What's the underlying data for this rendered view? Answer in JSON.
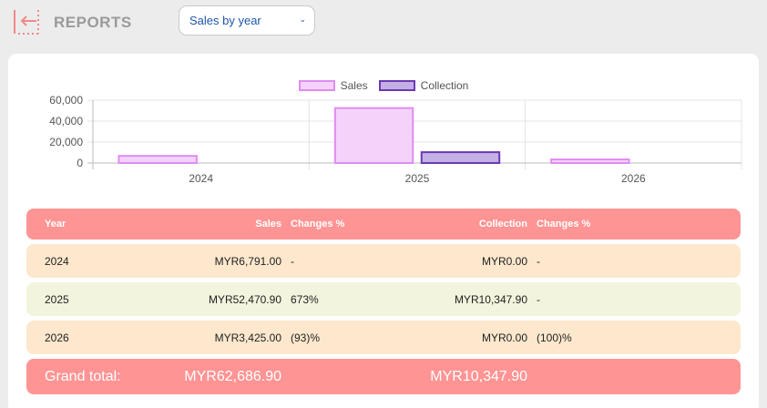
{
  "header": {
    "title": "REPORTS",
    "report_select": {
      "value": "Sales by year"
    }
  },
  "chart_data": {
    "type": "bar",
    "categories": [
      "2024",
      "2025",
      "2026"
    ],
    "series": [
      {
        "name": "Sales",
        "values": [
          6791.0,
          52470.9,
          3425.0
        ]
      },
      {
        "name": "Collection",
        "values": [
          0.0,
          10347.9,
          0.0
        ]
      }
    ],
    "ylim": [
      0,
      60000
    ],
    "yticks": [
      "60,000",
      "40,000",
      "20,000",
      "0"
    ],
    "legend": "top-center",
    "colors": {
      "sales_fill": "#f3d3fa",
      "sales_border": "#e08cf2",
      "collection_fill": "#c3b0e4",
      "collection_border": "#6c3ab5"
    }
  },
  "table": {
    "columns": {
      "year": "Year",
      "sales": "Sales",
      "sales_change": "Changes %",
      "collection": "Collection",
      "collection_change": "Changes %"
    },
    "rows": [
      {
        "year": "2024",
        "sales": "MYR6,791.00",
        "sales_change": "-",
        "collection": "MYR0.00",
        "collection_change": "-"
      },
      {
        "year": "2025",
        "sales": "MYR52,470.90",
        "sales_change": "673%",
        "collection": "MYR10,347.90",
        "collection_change": "-"
      },
      {
        "year": "2026",
        "sales": "MYR3,425.00",
        "sales_change": "(93)%",
        "collection": "MYR0.00",
        "collection_change": "(100)%"
      }
    ],
    "total": {
      "label": "Grand total:",
      "sales": "MYR62,686.90",
      "collection": "MYR10,347.90"
    }
  },
  "colors": {
    "accent": "#ff9494",
    "row_peach": "#fde8cd",
    "row_cream": "#f3f4dd",
    "select_text": "#1f56a8"
  }
}
